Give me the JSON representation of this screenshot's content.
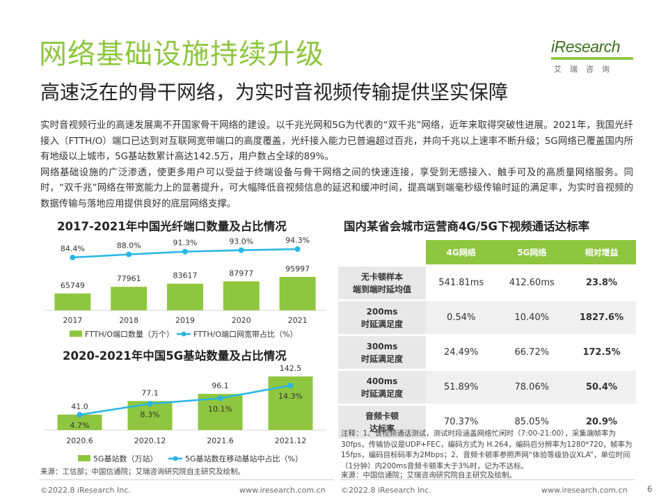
{
  "header": {
    "title": "网络基础设施持续升级",
    "subtitle": "高速泛在的骨干网络，为实时音视频传输提供坚实保障",
    "logo_text": "iResearch",
    "logo_cn": "艾瑞咨询"
  },
  "body": {
    "paragraph_1": "实时音视频行业的高速发展离不开国家骨干网络的建设。以千兆光网和5G为代表的“双千兆”网络，近年来取得突破性进展。2021年，我国光纤接入（FTTH/O）端口已达到对互联网宽带端口的高度覆盖，光纤接入能力已普遍超过百兆，并向千兆以上速率不断升级；5G网络已覆盖国内所有地级以上城市，5G基站数累计高达142.5万，用户数占全球的89%。",
    "paragraph_2": "网络基础设施的广泛渗透，使更多用户可以受益于终端设备与骨干网络之间的快速连接，享受到无感接入、触手可及的高质量网络服务。同时，“双千兆”网络在带宽能力上的显著提升，可大幅降低音视频信息的延迟和缓冲时间，提高端到端毫秒级传输时延的满足率，为实时音视频的数据传输与落地应用提供良好的底层网络支撑。"
  },
  "chart_data": [
    {
      "type": "bar+line",
      "title": "2017-2021年中国光纤端口数量及占比情况",
      "categories": [
        "2017",
        "2018",
        "2019",
        "2020",
        "2021"
      ],
      "series": [
        {
          "name": "FTTH/O端口数量（万个）",
          "kind": "bar",
          "values": [
            65749,
            77961,
            83617,
            87977,
            95997
          ],
          "color": "#8ec63f"
        },
        {
          "name": "FTTH/O端口网宽带占比（%）",
          "kind": "line",
          "values": [
            84.4,
            88.0,
            91.3,
            93.0,
            94.3
          ],
          "labels": [
            "84.4%",
            "88.0%",
            "91.3%",
            "93.0%",
            "94.3%"
          ],
          "color": "#29b6e6"
        }
      ],
      "bar_labels": [
        "65749",
        "77961",
        "83617",
        "87977",
        "95997"
      ],
      "legend_position": "bottom"
    },
    {
      "type": "bar+line",
      "title": "2020-2021年中国5G基站数量及占比情况",
      "categories": [
        "2020.6",
        "2020.12",
        "2021.6",
        "2021.12"
      ],
      "series": [
        {
          "name": "5G基站数（万站）",
          "kind": "bar",
          "values": [
            41.0,
            77.1,
            96.1,
            142.5
          ],
          "color": "#8ec63f"
        },
        {
          "name": "5G基站数在移动基站中占比（%）",
          "kind": "line",
          "values": [
            4.7,
            8.3,
            10.1,
            14.3
          ],
          "labels": [
            "4.7%",
            "8.3%",
            "10.1%",
            "14.3%"
          ],
          "color": "#29b6e6"
        }
      ],
      "bar_labels": [
        "41.0",
        "77.1",
        "96.1",
        "142.5"
      ],
      "legend_position": "bottom"
    },
    {
      "type": "table",
      "title": "国内某省会城市运营商4G/5G下视频通话达标率",
      "columns": [
        "4G网络",
        "5G网络",
        "相对增益"
      ],
      "rows": [
        {
          "label_1": "无卡顿样本",
          "label_2": "端到端时延均值",
          "v4g": "541.81ms",
          "v5g": "412.60ms",
          "gain": "23.8%"
        },
        {
          "label_1": "200ms",
          "label_2": "时延满足度",
          "v4g": "0.54%",
          "v5g": "10.40%",
          "gain": "1827.6%"
        },
        {
          "label_1": "300ms",
          "label_2": "时延满足度",
          "v4g": "24.49%",
          "v5g": "66.72%",
          "gain": "172.5%"
        },
        {
          "label_1": "400ms",
          "label_2": "时延满足度",
          "v4g": "51.89%",
          "v5g": "78.06%",
          "gain": "50.4%"
        },
        {
          "label_1": "音频卡顿",
          "label_2": "达标率",
          "v4g": "70.37%",
          "v5g": "85.05%",
          "gain": "20.9%"
        }
      ]
    }
  ],
  "notes": {
    "table_note": "注释：1、该视频通话测试，测试时段涵盖网络忙闲时（7:00-21:00），采集端帧率为30fps，传输协议是UDP+FEC，编码方式为 H.264，编码后分辨率为1280*720，帧率为15fps，编码目标码率为2Mbps；2、音频卡顿率参照声网“体验等级协议XLA”，单位时间（1分钟）内200ms音频卡顿率大于3%时，记为不达标。",
    "table_source": "来源：中国信通院；艾瑞咨询研究院自主研究及绘制。",
    "left_source": "来源：工信部；中国信通院；艾瑞咨询研究院自主研究及绘制。"
  },
  "footer": {
    "copyright_left": "©2022.8 iResearch Inc.",
    "url_left": "www.iresearch.com.cn",
    "copyright_right": "©2022.8 iResearch Inc.",
    "url_right": "www.iresearch.com.cn",
    "page_number": "6"
  },
  "colors": {
    "accent_green": "#8ec63f",
    "line_blue": "#29b6e6"
  }
}
